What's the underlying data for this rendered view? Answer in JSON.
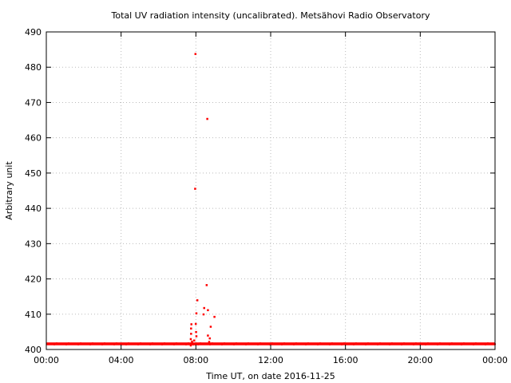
{
  "chart_data": {
    "type": "scatter",
    "title": "Total UV radiation intensity (uncalibrated). Metsähovi Radio Observatory",
    "xlabel": "Time UT, on date 2016-11-25",
    "ylabel": "Arbitrary unit",
    "xlim": [
      "00:00",
      "24:00"
    ],
    "ylim": [
      400,
      490
    ],
    "x_ticks": [
      "00:00",
      "04:00",
      "08:00",
      "12:00",
      "16:00",
      "20:00",
      "00:00"
    ],
    "y_ticks": [
      400,
      410,
      420,
      430,
      440,
      450,
      460,
      470,
      480,
      490
    ],
    "grid": true,
    "point_color": "#ff0000",
    "baseline": {
      "from": "00:00",
      "to": "24:00",
      "value": 401.6,
      "description_range": [
        401.2,
        402.0
      ]
    },
    "series": [
      {
        "points": [
          {
            "x": "07:43",
            "y": 401.2
          },
          {
            "x": "07:43",
            "y": 403.0
          },
          {
            "x": "07:44",
            "y": 404.5
          },
          {
            "x": "07:44",
            "y": 406.0
          },
          {
            "x": "07:45",
            "y": 407.2
          },
          {
            "x": "07:47",
            "y": 402.3
          },
          {
            "x": "07:48",
            "y": 401.8
          },
          {
            "x": "07:51",
            "y": 401.5
          },
          {
            "x": "07:54",
            "y": 402.6
          },
          {
            "x": "07:57",
            "y": 445.6
          },
          {
            "x": "07:58",
            "y": 483.8
          },
          {
            "x": "07:59",
            "y": 407.3
          },
          {
            "x": "08:00",
            "y": 405.0
          },
          {
            "x": "08:01",
            "y": 403.8
          },
          {
            "x": "08:01",
            "y": 410.3
          },
          {
            "x": "08:04",
            "y": 414.0
          },
          {
            "x": "08:24",
            "y": 410.0
          },
          {
            "x": "08:26",
            "y": 411.8
          },
          {
            "x": "08:34",
            "y": 418.3
          },
          {
            "x": "08:36",
            "y": 465.4
          },
          {
            "x": "08:38",
            "y": 411.2
          },
          {
            "x": "08:38",
            "y": 404.0
          },
          {
            "x": "08:42",
            "y": 402.2
          },
          {
            "x": "08:44",
            "y": 403.2
          },
          {
            "x": "08:47",
            "y": 406.5
          },
          {
            "x": "08:59",
            "y": 409.3
          }
        ]
      }
    ]
  }
}
